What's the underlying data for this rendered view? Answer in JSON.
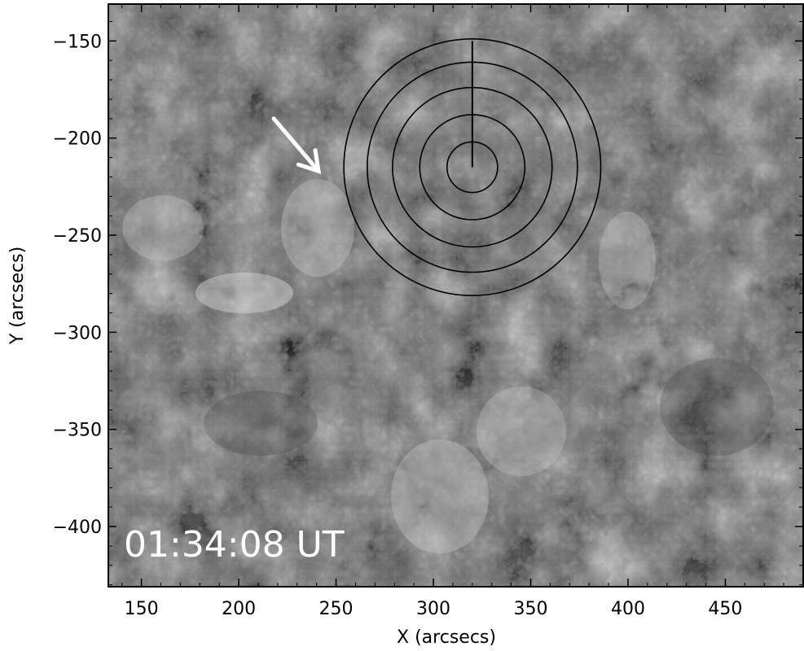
{
  "image": {
    "description_type": "solar-imaging-frame",
    "timestamp": "01:34:08 UT",
    "colors": {
      "frame": "#000000",
      "arrow": "#ffffff",
      "overlay_circles": "#000000",
      "timestamp_text": "#ffffff"
    }
  },
  "axes": {
    "xlabel": "X (arcsecs)",
    "ylabel": "Y (arcsecs)",
    "xlim": [
      133,
      490
    ],
    "ylim": [
      -431,
      -131
    ],
    "x_ticks": [
      150,
      200,
      250,
      300,
      350,
      400,
      450
    ],
    "y_ticks": [
      -150,
      -200,
      -250,
      -300,
      -350,
      -400
    ],
    "x_tick_labels": [
      "150",
      "200",
      "250",
      "300",
      "350",
      "400",
      "450"
    ],
    "y_tick_labels": [
      "−150",
      "−200",
      "−250",
      "−300",
      "−350",
      "−400"
    ]
  },
  "overlay": {
    "center": {
      "x": 320,
      "y": -215
    },
    "radii_arcsec": [
      13,
      27,
      41,
      54,
      66
    ],
    "radial_line_top": {
      "x": 320,
      "y": -150
    }
  },
  "arrow": {
    "tail": {
      "x": 218,
      "y": -190
    },
    "head": {
      "x": 241,
      "y": -217
    }
  }
}
